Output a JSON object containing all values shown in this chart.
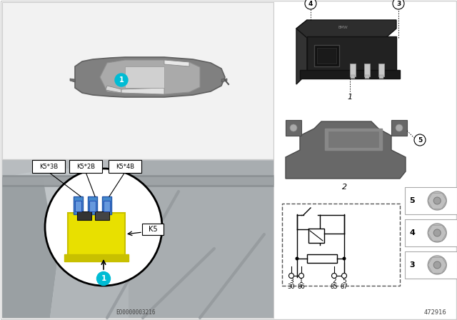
{
  "bg_color": "#ffffff",
  "doc_code": "EO0000003216",
  "part_code": "472916",
  "teal_color": "#00bcd4",
  "yellow_color": "#e8e000",
  "yellow_dark": "#c8c000",
  "blue_conn": "#4488cc",
  "blue_conn_dark": "#2255aa",
  "car_body_color": "#888888",
  "car_window_color": "#e8e8e8",
  "car_bg": "#f2f2f2",
  "engine_bg": "#c0c5c8",
  "engine_bg2": "#aeb3b6",
  "relay_black": "#2a2a2a",
  "relay_dark": "#1a1a1a",
  "bracket_color": "#686868",
  "bracket_dark": "#4a4a4a",
  "label_K5_3B": "K5*3B",
  "label_K5_2B": "K5*2B",
  "label_K5_4B": "K5*4B",
  "label_K5": "K5",
  "circuit_terms": [
    [
      "3",
      "30"
    ],
    [
      "1",
      "86"
    ],
    [
      "2",
      "85"
    ],
    [
      "5",
      "87"
    ]
  ],
  "part_labels": [
    "1",
    "2",
    "3",
    "4",
    "5"
  ]
}
